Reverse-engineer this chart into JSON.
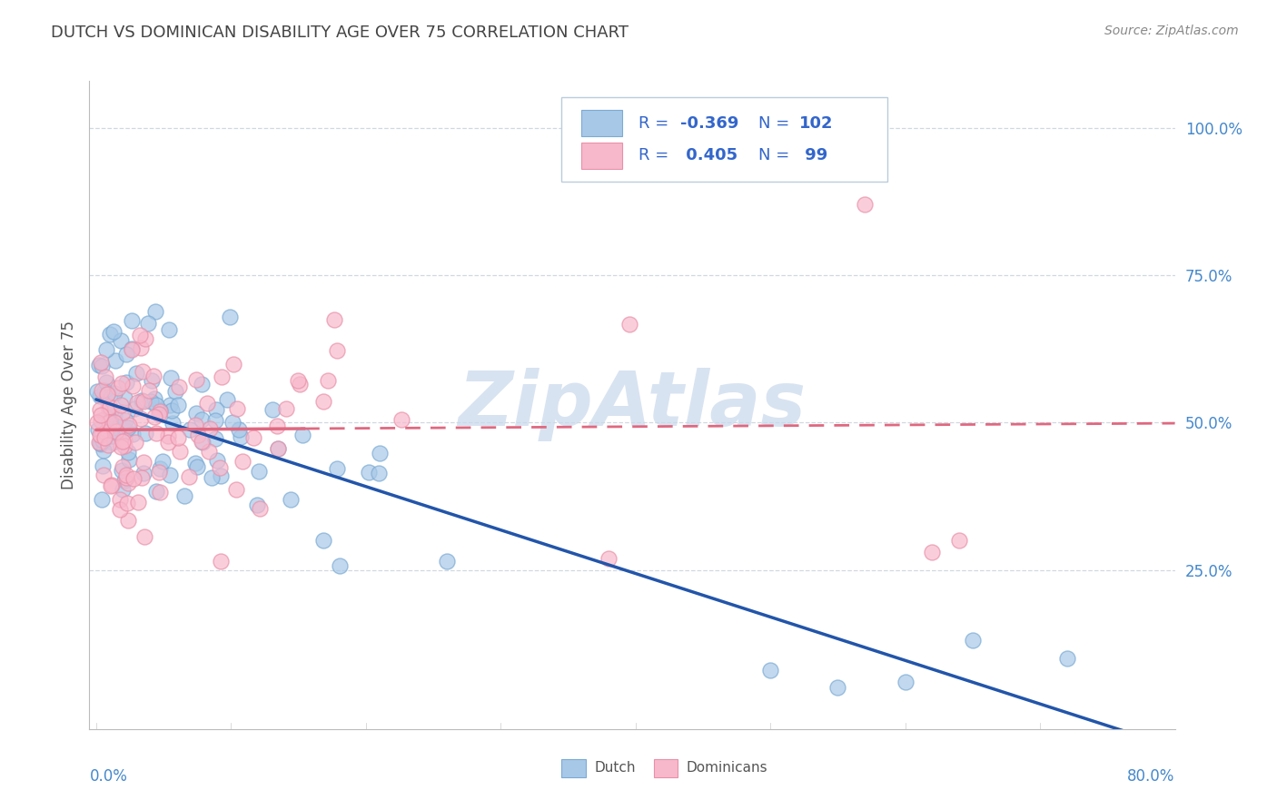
{
  "title": "DUTCH VS DOMINICAN DISABILITY AGE OVER 75 CORRELATION CHART",
  "source": "Source: ZipAtlas.com",
  "ylabel": "Disability Age Over 75",
  "ylim": [
    -0.02,
    1.08
  ],
  "xlim": [
    -0.005,
    0.8
  ],
  "ytick_positions": [
    0.25,
    0.5,
    0.75,
    1.0
  ],
  "ytick_labels": [
    "25.0%",
    "50.0%",
    "75.0%",
    "100.0%"
  ],
  "dutch_color": "#a8c8e8",
  "dutch_edge_color": "#7aaad4",
  "dutch_line_color": "#2255aa",
  "dominican_color": "#f8b8cc",
  "dominican_edge_color": "#e890a8",
  "dominican_line_color": "#e06880",
  "grid_color": "#d0d8e0",
  "background_color": "#ffffff",
  "title_color": "#444444",
  "source_color": "#888888",
  "tick_label_color": "#4488cc",
  "ylabel_color": "#555555",
  "watermark_color": "#c8d8ec",
  "legend_text_color": "#3366cc",
  "legend_R1_val": "-0.369",
  "legend_N1_val": "102",
  "legend_R2_val": "0.405",
  "legend_N2_val": "99"
}
